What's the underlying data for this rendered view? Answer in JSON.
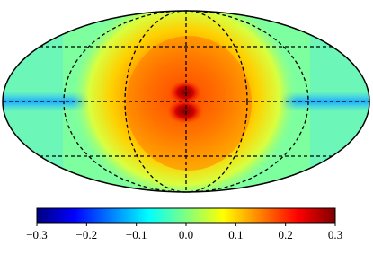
{
  "chart_data": {
    "type": "heatmap",
    "projection": "mollweide",
    "colormap": "jet",
    "xlim": [
      -0.3,
      0.3
    ],
    "xticks": [
      {
        "value": -0.3,
        "label": "−0.3"
      },
      {
        "value": -0.2,
        "label": "−0.2"
      },
      {
        "value": -0.1,
        "label": "−0.1"
      },
      {
        "value": 0,
        "label": "0.0"
      },
      0.1,
      0.2,
      0.3
    ]
  }
}
